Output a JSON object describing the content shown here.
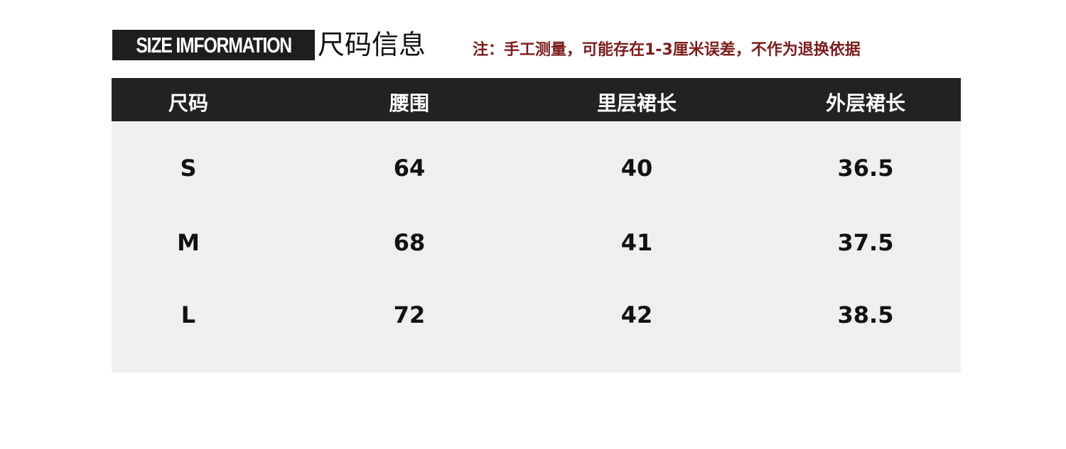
{
  "header": {
    "label": "SIZE IMFORMATION",
    "title": "尺码信息",
    "note": "注：手工测量，可能存在1-3厘米误差，不作为退换依据"
  },
  "table": {
    "columns": [
      "尺码",
      "腰围",
      "里层裙长",
      "外层裙长"
    ],
    "rows": [
      [
        "S",
        "64",
        "40",
        "36.5"
      ],
      [
        "M",
        "68",
        "41",
        "37.5"
      ],
      [
        "L",
        "72",
        "42",
        "38.5"
      ]
    ]
  },
  "colors": {
    "header_bg": "#222222",
    "body_bg": "#efefef",
    "note": "#7c1c1c"
  }
}
